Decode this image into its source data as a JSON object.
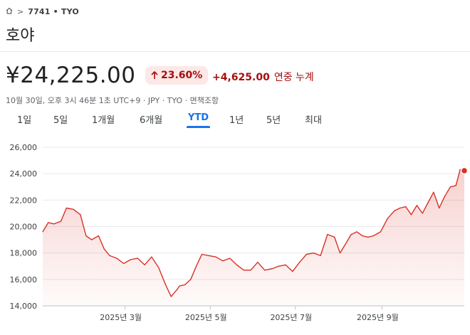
{
  "breadcrumb": {
    "home_icon": "home-icon",
    "separator": ">",
    "symbol": "7741 • TYO"
  },
  "stock": {
    "name": "호야",
    "price": "¥24,225.00",
    "change_percent": "23.60%",
    "change_amount": "+4,625.00",
    "change_label": "연중 누계",
    "meta": "10월 30일, 오후 3시 46분 1초 UTC+9 · JPY · TYO · 면책조항"
  },
  "colors": {
    "down_red": "#a50e0e",
    "line_red": "#d93025",
    "active_blue": "#1a73e8",
    "badge_bg": "#fce8e6"
  },
  "tabs": [
    {
      "label": "1일",
      "active": false
    },
    {
      "label": "5일",
      "active": false
    },
    {
      "label": "1개월",
      "active": false
    },
    {
      "label": "6개월",
      "active": false
    },
    {
      "label": "YTD",
      "active": true
    },
    {
      "label": "1년",
      "active": false
    },
    {
      "label": "5년",
      "active": false
    },
    {
      "label": "최대",
      "active": false
    }
  ],
  "chart_data": {
    "type": "area",
    "title": "",
    "xlabel": "",
    "ylabel": "",
    "ylim": [
      14000,
      26000
    ],
    "yticks": [
      "26,000",
      "24,000",
      "22,000",
      "20,000",
      "18,000",
      "16,000",
      "14,000"
    ],
    "ytick_values": [
      26000,
      24000,
      22000,
      20000,
      18000,
      16000,
      14000
    ],
    "xticks": [
      "2025년 3월",
      "2025년 5월",
      "2025년 7월",
      "2025년 9월"
    ],
    "xtick_values": [
      "2025-03-01",
      "2025-05-01",
      "2025-07-01",
      "2025-09-01"
    ],
    "x_range": [
      "2025-01-01",
      "2025-10-30"
    ],
    "grid": true,
    "series": [
      {
        "x": [
          "2025-01-01",
          "2025-01-05",
          "2025-01-09",
          "2025-01-14",
          "2025-01-18",
          "2025-01-23",
          "2025-01-28",
          "2025-02-01",
          "2025-02-05",
          "2025-02-10",
          "2025-02-14",
          "2025-02-18",
          "2025-02-23",
          "2025-02-28",
          "2025-03-05",
          "2025-03-10",
          "2025-03-15",
          "2025-03-20",
          "2025-03-25",
          "2025-03-30",
          "2025-04-03",
          "2025-04-07",
          "2025-04-09",
          "2025-04-13",
          "2025-04-17",
          "2025-04-21",
          "2025-04-25",
          "2025-04-30",
          "2025-05-05",
          "2025-05-10",
          "2025-05-15",
          "2025-05-20",
          "2025-05-25",
          "2025-05-30",
          "2025-06-04",
          "2025-06-09",
          "2025-06-14",
          "2025-06-19",
          "2025-06-24",
          "2025-06-29",
          "2025-07-04",
          "2025-07-09",
          "2025-07-14",
          "2025-07-19",
          "2025-07-24",
          "2025-07-29",
          "2025-08-02",
          "2025-08-06",
          "2025-08-10",
          "2025-08-14",
          "2025-08-18",
          "2025-08-22",
          "2025-08-26",
          "2025-08-31",
          "2025-09-05",
          "2025-09-10",
          "2025-09-14",
          "2025-09-18",
          "2025-09-22",
          "2025-09-26",
          "2025-09-30",
          "2025-10-04",
          "2025-10-08",
          "2025-10-12",
          "2025-10-16",
          "2025-10-20",
          "2025-10-24",
          "2025-10-27",
          "2025-10-30"
        ],
        "values": [
          19600,
          20300,
          20200,
          20400,
          21400,
          21300,
          20900,
          19300,
          19000,
          19300,
          18300,
          17800,
          17600,
          17200,
          17500,
          17600,
          17100,
          17700,
          16900,
          15600,
          14700,
          15200,
          15500,
          15600,
          16000,
          17000,
          17900,
          17800,
          17700,
          17400,
          17600,
          17100,
          16700,
          16700,
          17300,
          16700,
          16800,
          17000,
          17100,
          16600,
          17300,
          17900,
          18000,
          17800,
          19400,
          19200,
          18000,
          18700,
          19400,
          19600,
          19300,
          19200,
          19300,
          19600,
          20600,
          21200,
          21400,
          21500,
          20900,
          21600,
          21000,
          21800,
          22600,
          21400,
          22300,
          23000,
          23100,
          24300,
          24225
        ]
      }
    ],
    "last_point_marker": true
  }
}
